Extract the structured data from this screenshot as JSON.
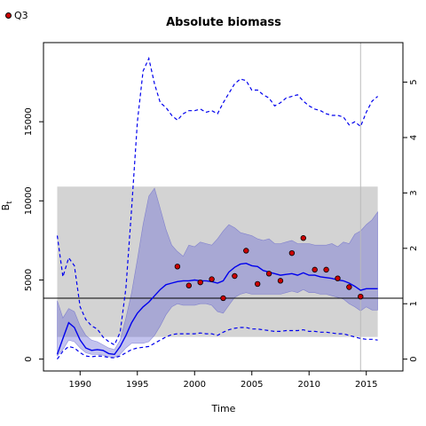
{
  "chart_data": {
    "type": "line",
    "title": "Absolute biomass",
    "xlabel": "Time",
    "ylabel": "B",
    "ylabel_subscript": "t",
    "xlim": [
      1986.8,
      2018.2
    ],
    "ylim": [
      -750,
      20000
    ],
    "xticks": [
      1990,
      1995,
      2000,
      2005,
      2010,
      2015
    ],
    "yticks": [
      0,
      5000,
      10000,
      15000
    ],
    "y2lim": [
      -0.214,
      5.714
    ],
    "y2ticks": [
      0,
      1,
      2,
      3,
      4,
      5
    ],
    "legend": {
      "position": "top-left",
      "entries": [
        {
          "label": "Q3",
          "marker": "red-dot"
        }
      ]
    },
    "reference_line_y": 3850,
    "vertical_line_x": 2014.5,
    "band_gray": {
      "x0": 1988,
      "x1": 2016,
      "y0": 1400,
      "y1": 10900
    },
    "series": [
      {
        "style": "solid-blue",
        "x": [
          1988,
          1988.5,
          1989,
          1989.5,
          1990,
          1990.5,
          1991,
          1991.5,
          1992,
          1992.5,
          1993,
          1993.5,
          1994,
          1994.5,
          1995,
          1995.5,
          1996,
          1996.5,
          1997,
          1997.5,
          1998,
          1998.5,
          1999,
          1999.5,
          2000,
          2000.5,
          2001,
          2001.5,
          2002,
          2002.5,
          2003,
          2003.5,
          2004,
          2004.5,
          2005,
          2005.5,
          2006,
          2006.5,
          2007,
          2007.5,
          2008,
          2008.5,
          2009,
          2009.5,
          2010,
          2010.5,
          2011,
          2011.5,
          2012,
          2012.5,
          2013,
          2013.5,
          2014,
          2014.5,
          2015,
          2015.5,
          2016
        ],
        "y": [
          300,
          1300,
          2300,
          2000,
          1200,
          700,
          550,
          600,
          550,
          350,
          300,
          800,
          1500,
          2300,
          2900,
          3300,
          3600,
          4000,
          4400,
          4700,
          4800,
          4900,
          4950,
          4950,
          5000,
          4950,
          4950,
          4900,
          4800,
          4950,
          5500,
          5800,
          6000,
          6050,
          5900,
          5850,
          5600,
          5500,
          5400,
          5300,
          5350,
          5400,
          5300,
          5450,
          5300,
          5300,
          5200,
          5150,
          5100,
          5000,
          4950,
          4800,
          4600,
          4350,
          4450,
          4450,
          4450
        ]
      },
      {
        "style": "dashed-blue-upper",
        "x": [
          1988,
          1988.5,
          1989,
          1989.5,
          1990,
          1990.5,
          1991,
          1991.5,
          1992,
          1992.5,
          1993,
          1993.5,
          1994,
          1994.5,
          1995,
          1995.5,
          1996,
          1996.5,
          1997,
          1997.5,
          1998,
          1998.5,
          1999,
          1999.5,
          2000,
          2000.5,
          2001,
          2001.5,
          2002,
          2002.5,
          2003,
          2003.5,
          2004,
          2004.5,
          2005,
          2005.5,
          2006,
          2006.5,
          2007,
          2007.5,
          2008,
          2008.5,
          2009,
          2009.5,
          2010,
          2010.5,
          2011,
          2011.5,
          2012,
          2012.5,
          2013,
          2013.5,
          2014,
          2014.5,
          2015,
          2015.5,
          2016
        ],
        "y": [
          7800,
          5200,
          6400,
          5900,
          3300,
          2500,
          2100,
          1900,
          1400,
          1100,
          900,
          1700,
          4500,
          9500,
          15000,
          18200,
          19000,
          17400,
          16200,
          15900,
          15400,
          15100,
          15500,
          15700,
          15700,
          15800,
          15600,
          15700,
          15500,
          16200,
          16800,
          17400,
          17700,
          17600,
          17000,
          17000,
          16700,
          16500,
          16000,
          16200,
          16500,
          16600,
          16700,
          16300,
          16000,
          15800,
          15700,
          15500,
          15400,
          15400,
          15300,
          14800,
          15000,
          14700,
          15600,
          16300,
          16600
        ]
      },
      {
        "style": "dashed-blue-lower",
        "x": [
          1988,
          1988.5,
          1989,
          1989.5,
          1990,
          1990.5,
          1991,
          1991.5,
          1992,
          1992.5,
          1993,
          1993.5,
          1994,
          1994.5,
          1995,
          1995.5,
          1996,
          1996.5,
          1997,
          1997.5,
          1998,
          1998.5,
          1999,
          1999.5,
          2000,
          2000.5,
          2001,
          2001.5,
          2002,
          2002.5,
          2003,
          2003.5,
          2004,
          2004.5,
          2005,
          2005.5,
          2006,
          2006.5,
          2007,
          2007.5,
          2008,
          2008.5,
          2009,
          2009.5,
          2010,
          2010.5,
          2011,
          2011.5,
          2012,
          2012.5,
          2013,
          2013.5,
          2014,
          2014.5,
          2015,
          2015.5,
          2016
        ],
        "y": [
          0,
          500,
          800,
          700,
          400,
          200,
          150,
          200,
          180,
          100,
          80,
          200,
          400,
          600,
          700,
          750,
          800,
          1000,
          1200,
          1400,
          1550,
          1600,
          1600,
          1600,
          1600,
          1650,
          1600,
          1600,
          1500,
          1700,
          1850,
          1950,
          2000,
          2000,
          1900,
          1900,
          1850,
          1800,
          1750,
          1750,
          1800,
          1800,
          1800,
          1850,
          1750,
          1750,
          1700,
          1700,
          1650,
          1600,
          1600,
          1500,
          1400,
          1300,
          1250,
          1250,
          1200
        ]
      },
      {
        "style": "shaded-ci",
        "x": [
          1988,
          1988.5,
          1989,
          1989.5,
          1990,
          1990.5,
          1991,
          1991.5,
          1992,
          1992.5,
          1993,
          1993.5,
          1994,
          1994.5,
          1995,
          1995.5,
          1996,
          1996.5,
          1997,
          1997.5,
          1998,
          1998.5,
          1999,
          1999.5,
          2000,
          2000.5,
          2001,
          2001.5,
          2002,
          2002.5,
          2003,
          2003.5,
          2004,
          2004.5,
          2005,
          2005.5,
          2006,
          2006.5,
          2007,
          2007.5,
          2008,
          2008.5,
          2009,
          2009.5,
          2010,
          2010.5,
          2011,
          2011.5,
          2012,
          2012.5,
          2013,
          2013.5,
          2014,
          2014.5,
          2015,
          2015.5,
          2016
        ],
        "upper": [
          3700,
          2600,
          3200,
          3000,
          2100,
          1500,
          1200,
          1100,
          900,
          700,
          600,
          1200,
          2600,
          4200,
          6300,
          8500,
          10300,
          10800,
          9500,
          8200,
          7200,
          6800,
          6500,
          7200,
          7100,
          7400,
          7300,
          7200,
          7600,
          8100,
          8500,
          8300,
          8000,
          7900,
          7800,
          7600,
          7500,
          7600,
          7300,
          7300,
          7400,
          7500,
          7300,
          7300,
          7300,
          7200,
          7200,
          7200,
          7300,
          7100,
          7400,
          7300,
          7900,
          8100,
          8500,
          8800,
          9300
        ],
        "lower": [
          200,
          600,
          1200,
          1100,
          700,
          400,
          300,
          300,
          250,
          150,
          100,
          300,
          700,
          1000,
          1000,
          1000,
          1100,
          1500,
          2100,
          2800,
          3300,
          3500,
          3400,
          3400,
          3400,
          3500,
          3500,
          3400,
          3000,
          2900,
          3400,
          3900,
          4100,
          4200,
          4100,
          4100,
          4100,
          4100,
          4100,
          4100,
          4200,
          4300,
          4200,
          4400,
          4200,
          4200,
          4100,
          4100,
          4000,
          3900,
          3800,
          3500,
          3300,
          3050,
          3300,
          3100,
          3100
        ]
      }
    ],
    "points": {
      "name": "Q3",
      "x": [
        1998.5,
        1999.5,
        2000.5,
        2001.5,
        2002.5,
        2003.5,
        2004.5,
        2005.5,
        2006.5,
        2007.5,
        2008.5,
        2009.5,
        2010.5,
        2011.5,
        2012.5,
        2013.5,
        2014.5
      ],
      "y": [
        5850,
        4650,
        4850,
        5050,
        3850,
        5250,
        6850,
        4750,
        5400,
        4950,
        6700,
        7650,
        5650,
        5650,
        5100,
        4550,
        3950
      ]
    }
  }
}
